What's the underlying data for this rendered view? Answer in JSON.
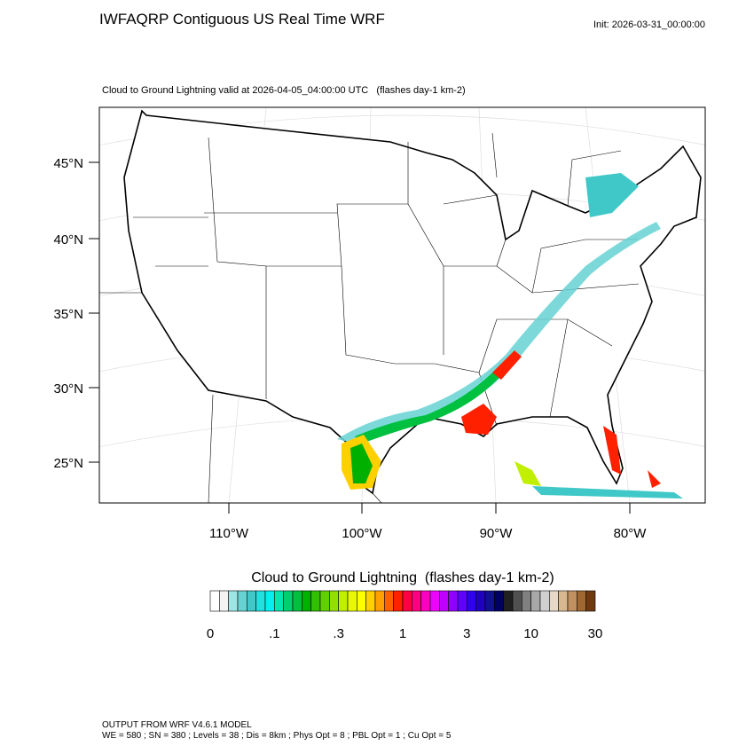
{
  "header": {
    "title": "IWFAQRP Contiguous US Real Time WRF",
    "init": "Init: 2026-03-31_00:00:00"
  },
  "map": {
    "subtitle": "Cloud to Ground Lightning valid at 2026-04-05_04:00:00 UTC   (flashes day-1 km-2)",
    "lat_labels": [
      "45°N",
      "40°N",
      "35°N",
      "30°N",
      "25°N"
    ],
    "lon_labels": [
      "110°W",
      "100°W",
      "90°W",
      "80°W"
    ]
  },
  "colorbar": {
    "title": "Cloud to Ground Lightning  (flashes day-1 km-2)",
    "colors": [
      "#ffffff",
      "#f4f4f4",
      "#9ee6e6",
      "#66d2d2",
      "#40c8c8",
      "#20e0e0",
      "#00f0f0",
      "#00e8b0",
      "#00d070",
      "#00c040",
      "#00b000",
      "#30c000",
      "#60d000",
      "#90e000",
      "#c0f000",
      "#e8f800",
      "#ffff00",
      "#ffd000",
      "#ffa000",
      "#ff6000",
      "#ff2000",
      "#ff0040",
      "#ff0080",
      "#ff00c0",
      "#f000ff",
      "#c000ff",
      "#9000ff",
      "#6000ff",
      "#3000f0",
      "#2000c0",
      "#101090",
      "#000060",
      "#202020",
      "#505050",
      "#808080",
      "#a8a8a8",
      "#d0d0d0",
      "#e8d8c8",
      "#d8b890",
      "#c09060",
      "#a06830",
      "#703810"
    ],
    "labels": [
      "0",
      ".1",
      ".3",
      "1",
      "3",
      "10",
      "30"
    ]
  },
  "footer": {
    "line1": "OUTPUT FROM WRF V4.6.1 MODEL",
    "line2": "WE = 580 ; SN = 380 ; Levels = 38 ; Dis = 8km ; Phys Opt = 8 ; PBL Opt = 1 ; Cu Opt = 5"
  }
}
